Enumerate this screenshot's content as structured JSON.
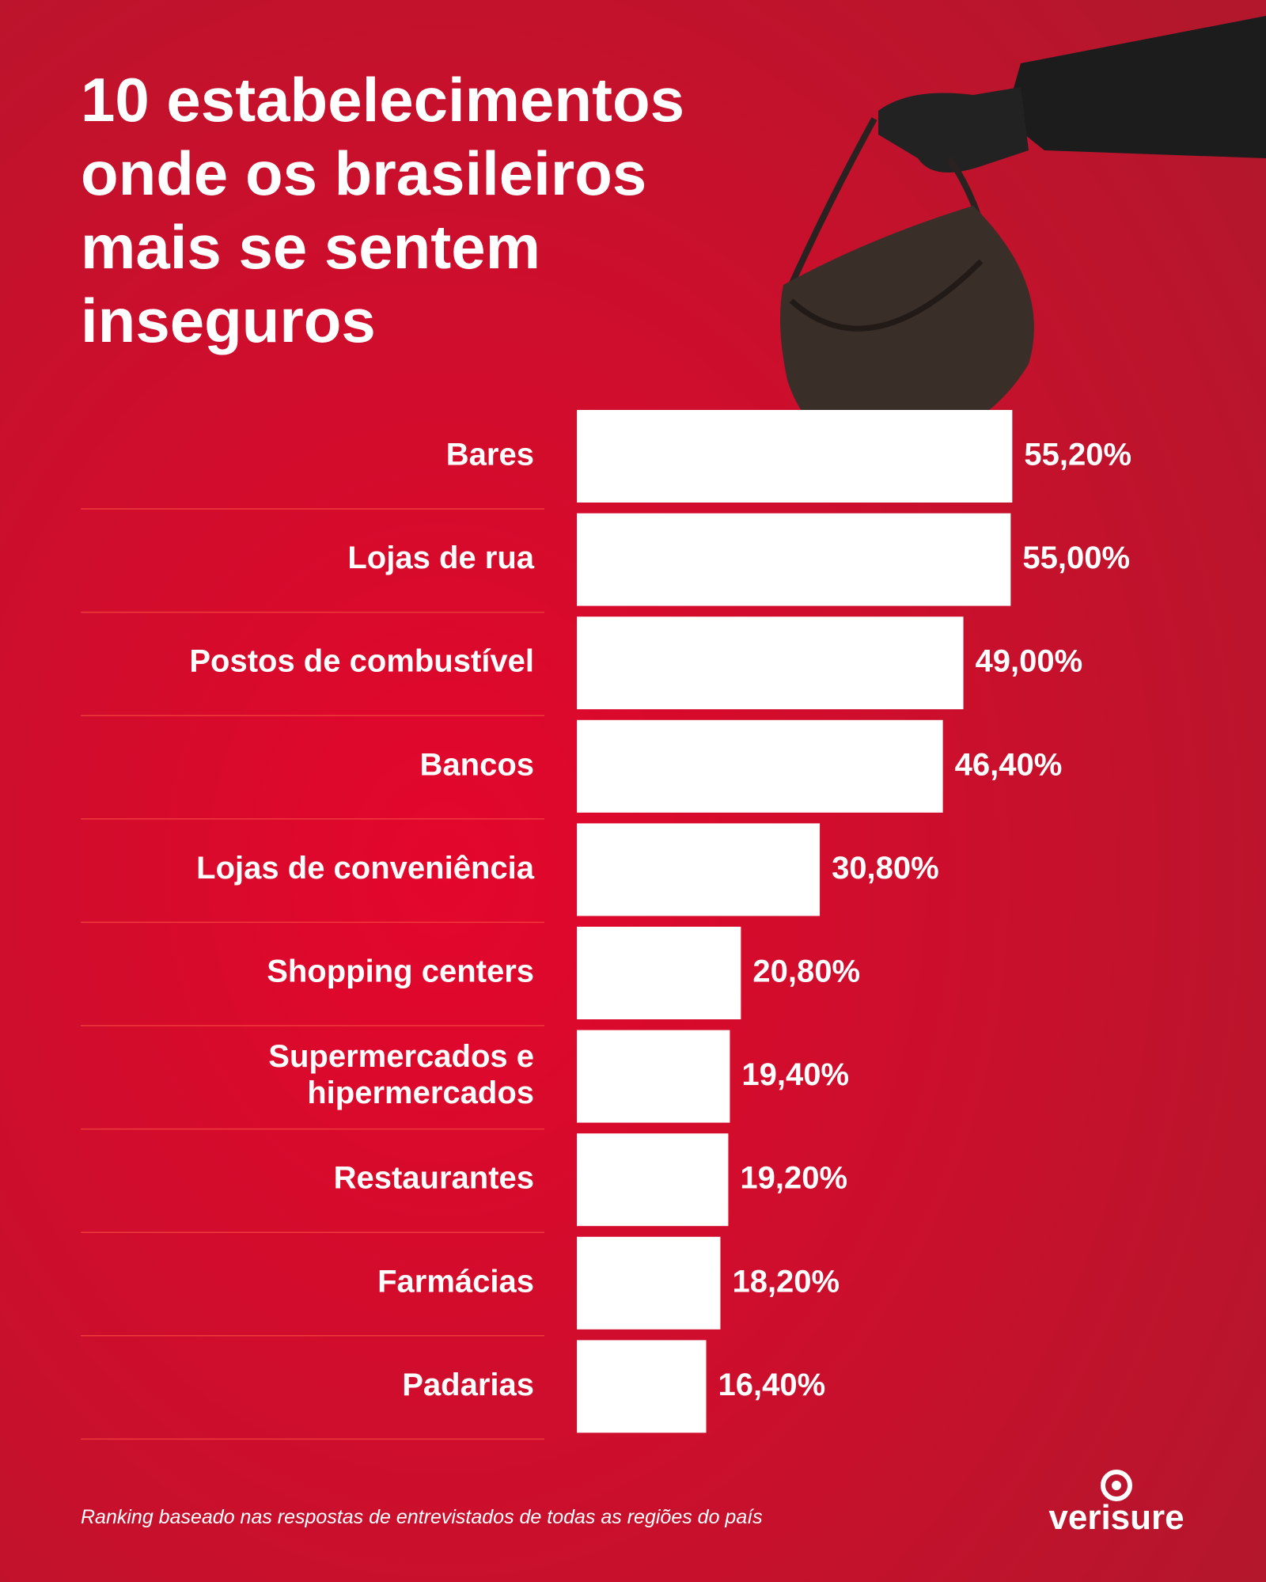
{
  "chart_data": {
    "type": "bar",
    "orientation": "horizontal",
    "title": "10 estabelecimentos\nonde os brasileiros\nmais se sentem\ninseguros",
    "categories": [
      "Bares",
      "Lojas de rua",
      "Postos de combustível",
      "Bancos",
      "Lojas de conveniência",
      "Shopping centers",
      "Supermercados e\nhipermercados",
      "Restaurantes",
      "Farmácias",
      "Padarias"
    ],
    "values": [
      55.2,
      55.0,
      49.0,
      46.4,
      30.8,
      20.8,
      19.4,
      19.2,
      18.2,
      16.4
    ],
    "value_labels": [
      "55,20%",
      "55,00%",
      "49,00%",
      "46,40%",
      "30,80%",
      "20,80%",
      "19,40%",
      "19,20%",
      "18,20%",
      "16,40%"
    ],
    "color": "#ffffff",
    "note": "Ranking baseado nas respostas de entrevistados de todas as regiões do país",
    "brand": "verisure"
  }
}
